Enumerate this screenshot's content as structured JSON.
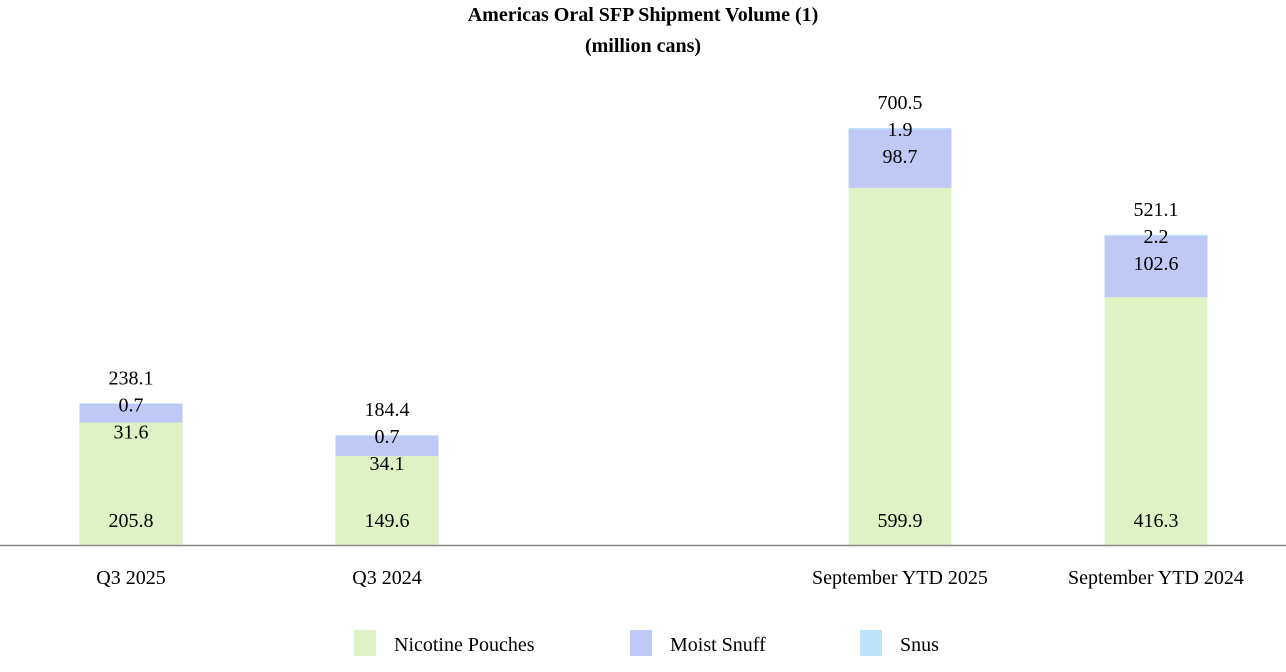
{
  "chart_data": {
    "type": "bar",
    "stacked": true,
    "title": "Americas Oral SFP Shipment Volume (1)",
    "subtitle": "(million cans)",
    "xlabel": "",
    "ylabel": "",
    "ylim": [
      0,
      700.5
    ],
    "grid": false,
    "legend_position": "bottom",
    "categories": [
      "Q3 2025",
      "Q3 2024",
      "September YTD 2025",
      "September YTD 2024"
    ],
    "totals": [
      238.1,
      184.4,
      700.5,
      521.1
    ],
    "series": [
      {
        "name": "Nicotine Pouches",
        "color": "#dff2c4",
        "values": [
          205.8,
          149.6,
          599.9,
          416.3
        ]
      },
      {
        "name": "Moist Snuff",
        "color": "#c0c8f6",
        "values": [
          31.6,
          34.1,
          98.7,
          102.6
        ]
      },
      {
        "name": "Snus",
        "color": "#bde3fb",
        "values": [
          0.7,
          0.7,
          1.9,
          2.2
        ]
      }
    ]
  }
}
